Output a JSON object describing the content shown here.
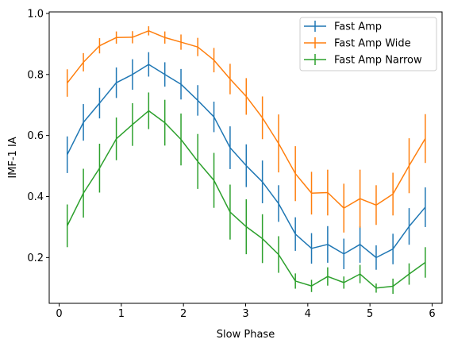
{
  "chart_data": {
    "type": "line",
    "xlabel": "Slow Phase",
    "ylabel": "IMF-1 IA",
    "xlim": [
      -0.16,
      6.16
    ],
    "ylim": [
      0.05,
      1.005
    ],
    "xticks": [
      0,
      1,
      2,
      3,
      4,
      5,
      6
    ],
    "yticks": [
      0.2,
      0.4,
      0.6,
      0.8,
      1.0
    ],
    "xtick_labels": [
      "0",
      "1",
      "2",
      "3",
      "4",
      "5",
      "6"
    ],
    "ytick_labels": [
      "0.2",
      "0.4",
      "0.6",
      "0.8",
      "1.0"
    ],
    "grid": false,
    "legend_position": "top-right",
    "x": [
      0.13,
      0.39,
      0.65,
      0.92,
      1.18,
      1.44,
      1.7,
      1.96,
      2.23,
      2.49,
      2.75,
      3.01,
      3.27,
      3.53,
      3.8,
      4.06,
      4.32,
      4.58,
      4.84,
      5.1,
      5.37,
      5.63,
      5.89
    ],
    "series": [
      {
        "name": "Fast Amp",
        "color": "#1f77b4",
        "values": [
          0.537,
          0.643,
          0.706,
          0.773,
          0.8,
          0.833,
          0.8,
          0.768,
          0.715,
          0.661,
          0.56,
          0.501,
          0.448,
          0.377,
          0.277,
          0.23,
          0.243,
          0.212,
          0.243,
          0.2,
          0.228,
          0.302,
          0.365
        ],
        "errors": [
          0.06,
          0.06,
          0.05,
          0.05,
          0.05,
          0.04,
          0.04,
          0.05,
          0.05,
          0.05,
          0.07,
          0.07,
          0.07,
          0.06,
          0.055,
          0.05,
          0.06,
          0.05,
          0.06,
          0.04,
          0.05,
          0.06,
          0.065
        ]
      },
      {
        "name": "Fast Amp Wide",
        "color": "#ff7f0e",
        "values": [
          0.772,
          0.84,
          0.894,
          0.921,
          0.922,
          0.943,
          0.921,
          0.906,
          0.89,
          0.847,
          0.785,
          0.728,
          0.658,
          0.574,
          0.475,
          0.411,
          0.413,
          0.362,
          0.393,
          0.372,
          0.408,
          0.501,
          0.59
        ],
        "errors": [
          0.045,
          0.03,
          0.025,
          0.02,
          0.02,
          0.015,
          0.02,
          0.025,
          0.03,
          0.04,
          0.05,
          0.06,
          0.07,
          0.095,
          0.09,
          0.07,
          0.075,
          0.08,
          0.095,
          0.065,
          0.07,
          0.09,
          0.08
        ]
      },
      {
        "name": " Fast Amp Narrow",
        "color": "#2ca02c",
        "values": [
          0.304,
          0.411,
          0.493,
          0.589,
          0.636,
          0.681,
          0.642,
          0.587,
          0.515,
          0.453,
          0.349,
          0.301,
          0.262,
          0.21,
          0.123,
          0.107,
          0.138,
          0.118,
          0.146,
          0.1,
          0.106,
          0.146,
          0.184
        ],
        "errors": [
          0.07,
          0.08,
          0.08,
          0.07,
          0.07,
          0.06,
          0.075,
          0.085,
          0.09,
          0.09,
          0.09,
          0.09,
          0.08,
          0.06,
          0.025,
          0.02,
          0.03,
          0.02,
          0.03,
          0.015,
          0.025,
          0.035,
          0.05
        ]
      }
    ]
  }
}
